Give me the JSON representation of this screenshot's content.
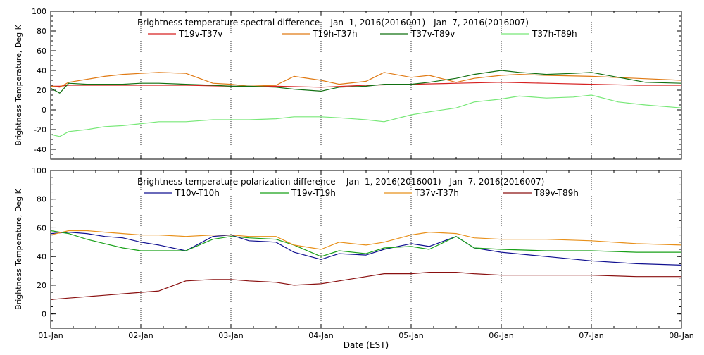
{
  "chart_data": [
    {
      "type": "line",
      "title": "Brightness temperature spectral difference    Jan  1, 2016(2016001) - Jan  7, 2016(2016007)",
      "xlabel": "",
      "ylabel": "Brightness Temperature, Deg K",
      "ylim": [
        -50,
        100
      ],
      "yticks": [
        -40,
        -20,
        0,
        20,
        40,
        60,
        80,
        100
      ],
      "xlim": [
        0,
        7
      ],
      "grid": true,
      "legend": "top",
      "series": [
        {
          "name": "T19v-T37v",
          "color": "#d62020",
          "x": [
            0,
            0.1,
            0.2,
            0.4,
            0.6,
            0.8,
            1.0,
            1.2,
            1.5,
            2.0,
            2.5,
            3.0,
            3.5,
            4.0,
            4.5,
            5.0,
            5.5,
            6.0,
            6.5,
            7.0
          ],
          "y": [
            24,
            24,
            25,
            25,
            25,
            25,
            25,
            25,
            25,
            24,
            24,
            23,
            25,
            26,
            27,
            28,
            27,
            26,
            25,
            25
          ]
        },
        {
          "name": "T19h-T37h",
          "color": "#e07a14",
          "x": [
            0,
            0.1,
            0.2,
            0.4,
            0.6,
            0.8,
            1.0,
            1.2,
            1.5,
            1.8,
            2.0,
            2.2,
            2.5,
            2.7,
            3.0,
            3.2,
            3.5,
            3.7,
            4.0,
            4.2,
            4.5,
            4.7,
            5.0,
            5.2,
            5.5,
            6.0,
            6.5,
            7.0
          ],
          "y": [
            24,
            23,
            28,
            31,
            34,
            36,
            37,
            38,
            37,
            27,
            26,
            24,
            25,
            34,
            30,
            26,
            29,
            38,
            33,
            35,
            28,
            32,
            35,
            36,
            35,
            34,
            32,
            30
          ]
        },
        {
          "name": "T37v-T89v",
          "color": "#127012",
          "x": [
            0,
            0.1,
            0.2,
            0.4,
            0.6,
            0.8,
            1.0,
            1.2,
            1.5,
            1.8,
            2.0,
            2.2,
            2.5,
            2.7,
            3.0,
            3.2,
            3.5,
            3.7,
            4.0,
            4.2,
            4.5,
            4.7,
            5.0,
            5.2,
            5.5,
            5.8,
            6.0,
            6.3,
            6.6,
            7.0
          ],
          "y": [
            22,
            17,
            27,
            26,
            26,
            26,
            27,
            27,
            26,
            25,
            24,
            24,
            23,
            21,
            19,
            23,
            24,
            26,
            26,
            28,
            32,
            36,
            40,
            38,
            36,
            37,
            38,
            33,
            28,
            27
          ]
        },
        {
          "name": "T37h-T89h",
          "color": "#78e878",
          "x": [
            0,
            0.1,
            0.2,
            0.4,
            0.6,
            0.8,
            1.0,
            1.2,
            1.5,
            1.8,
            2.0,
            2.2,
            2.5,
            2.7,
            3.0,
            3.2,
            3.5,
            3.7,
            4.0,
            4.2,
            4.5,
            4.7,
            5.0,
            5.2,
            5.5,
            5.8,
            6.0,
            6.3,
            6.6,
            7.0
          ],
          "y": [
            -25,
            -27,
            -22,
            -20,
            -17,
            -16,
            -14,
            -12,
            -12,
            -10,
            -10,
            -10,
            -9,
            -7,
            -7,
            -8,
            -10,
            -12,
            -5,
            -2,
            2,
            8,
            11,
            14,
            12,
            13,
            15,
            8,
            5,
            2
          ]
        }
      ]
    },
    {
      "type": "line",
      "title": "Brightness temperature polarization difference    Jan  1, 2016(2016001) - Jan  7, 2016(2016007)",
      "xlabel": "Date (EST)",
      "ylabel": "Brightness Temperature, Deg K",
      "ylim": [
        -10,
        100
      ],
      "yticks": [
        0,
        20,
        40,
        60,
        80,
        100
      ],
      "xlim": [
        0,
        7
      ],
      "xticks": [
        "01-Jan",
        "02-Jan",
        "03-Jan",
        "04-Jan",
        "05-Jan",
        "06-Jan",
        "07-Jan",
        "08-Jan"
      ],
      "grid": true,
      "legend": "top",
      "series": [
        {
          "name": "T10v-T10h",
          "color": "#101090",
          "x": [
            0,
            0.2,
            0.4,
            0.6,
            0.8,
            1.0,
            1.2,
            1.5,
            1.8,
            2.0,
            2.2,
            2.5,
            2.7,
            3.0,
            3.2,
            3.5,
            3.7,
            4.0,
            4.2,
            4.5,
            4.7,
            5.0,
            5.5,
            6.0,
            6.5,
            7.0
          ],
          "y": [
            56,
            57,
            56,
            54,
            53,
            50,
            48,
            44,
            54,
            55,
            51,
            50,
            43,
            38,
            42,
            41,
            45,
            49,
            47,
            54,
            46,
            43,
            40,
            37,
            35,
            34
          ]
        },
        {
          "name": "T19v-T19h",
          "color": "#18a018",
          "x": [
            0,
            0.2,
            0.4,
            0.6,
            0.8,
            1.0,
            1.2,
            1.5,
            1.8,
            2.0,
            2.2,
            2.5,
            2.7,
            3.0,
            3.2,
            3.5,
            3.7,
            4.0,
            4.2,
            4.5,
            4.7,
            5.0,
            5.5,
            6.0,
            6.5,
            7.0
          ],
          "y": [
            58,
            56,
            52,
            49,
            46,
            44,
            44,
            44,
            52,
            54,
            53,
            52,
            48,
            40,
            44,
            42,
            46,
            47,
            45,
            54,
            46,
            45,
            44,
            44,
            43,
            43
          ]
        },
        {
          "name": "T37v-T37h",
          "color": "#e8901a",
          "x": [
            0,
            0.2,
            0.4,
            0.6,
            0.8,
            1.0,
            1.2,
            1.5,
            1.8,
            2.0,
            2.2,
            2.5,
            2.7,
            3.0,
            3.2,
            3.5,
            3.7,
            4.0,
            4.2,
            4.5,
            4.7,
            5.0,
            5.5,
            6.0,
            6.5,
            7.0
          ],
          "y": [
            55,
            58,
            58,
            57,
            56,
            55,
            55,
            54,
            55,
            55,
            54,
            54,
            48,
            45,
            50,
            48,
            50,
            55,
            57,
            56,
            53,
            52,
            52,
            51,
            49,
            48
          ]
        },
        {
          "name": "T89v-T89h",
          "color": "#8a1010",
          "x": [
            0,
            0.2,
            0.4,
            0.6,
            0.8,
            1.0,
            1.2,
            1.5,
            1.8,
            2.0,
            2.2,
            2.5,
            2.7,
            3.0,
            3.2,
            3.5,
            3.7,
            4.0,
            4.2,
            4.5,
            4.7,
            5.0,
            5.5,
            6.0,
            6.5,
            7.0
          ],
          "y": [
            10,
            11,
            12,
            13,
            14,
            15,
            16,
            23,
            24,
            24,
            23,
            22,
            20,
            21,
            23,
            26,
            28,
            28,
            29,
            29,
            28,
            27,
            27,
            27,
            26,
            26
          ]
        }
      ]
    }
  ]
}
